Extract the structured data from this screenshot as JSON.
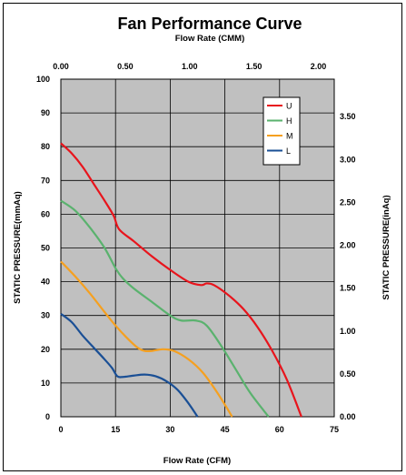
{
  "chart_data": {
    "type": "line",
    "title": "Fan Performance Curve",
    "subtitle": "Flow Rate (CMM)",
    "xlabel": "Flow Rate (CFM)",
    "ylabel_left": "STATIC PRESSURE(mmAq)",
    "ylabel_right": "STATIC PRESSURE(inAq)",
    "xlim": [
      0,
      75
    ],
    "ylim": [
      0,
      100
    ],
    "x_ticks": [
      "0",
      "15",
      "30",
      "45",
      "60",
      "75"
    ],
    "y_ticks": [
      "0",
      "10",
      "20",
      "30",
      "40",
      "50",
      "60",
      "70",
      "80",
      "90",
      "100"
    ],
    "top_ticks": [
      "0.00",
      "0.50",
      "1.00",
      "1.50",
      "2.00"
    ],
    "right_ticks": [
      "0.00",
      "0.50",
      "1.00",
      "1.50",
      "2.00",
      "2.50",
      "3.00",
      "3.50"
    ],
    "grid": true,
    "legend_position": "top-right",
    "series": [
      {
        "name": "U",
        "color": "#e8141c",
        "x": [
          0,
          3,
          6,
          9,
          12,
          14.5,
          16,
          20,
          25,
          30,
          35,
          38.5,
          40,
          42,
          46,
          50,
          54,
          58,
          62,
          66
        ],
        "y": [
          81,
          78,
          74,
          69,
          64,
          59.5,
          55.5,
          52,
          47.5,
          43.5,
          40,
          39,
          39.5,
          39,
          36,
          32,
          26.5,
          19.5,
          11,
          0
        ]
      },
      {
        "name": "H",
        "color": "#5ab26e",
        "x": [
          0,
          4,
          8,
          12,
          15,
          17,
          20,
          25,
          30,
          33,
          37,
          40,
          44,
          48,
          52,
          57
        ],
        "y": [
          64,
          61,
          56,
          50,
          44,
          41,
          38,
          34,
          30,
          28.5,
          28.5,
          27,
          21,
          14,
          7,
          0
        ]
      },
      {
        "name": "M",
        "color": "#f5a020",
        "x": [
          0,
          4,
          8,
          12,
          15,
          18,
          21,
          23,
          25,
          28,
          31,
          35,
          39,
          43,
          47
        ],
        "y": [
          46,
          41.5,
          36.5,
          31,
          27,
          23.5,
          20.5,
          19.5,
          19.5,
          20,
          19.5,
          17,
          13,
          7,
          0
        ]
      },
      {
        "name": "L",
        "color": "#1a4f95",
        "x": [
          0,
          3,
          6,
          9,
          12,
          14,
          15.5,
          17,
          20,
          23,
          26,
          29,
          32,
          35,
          37.5
        ],
        "y": [
          30.5,
          28,
          24,
          20.5,
          17,
          14.5,
          12,
          11.8,
          12.2,
          12.5,
          12,
          10.5,
          8,
          4,
          0
        ]
      }
    ]
  }
}
